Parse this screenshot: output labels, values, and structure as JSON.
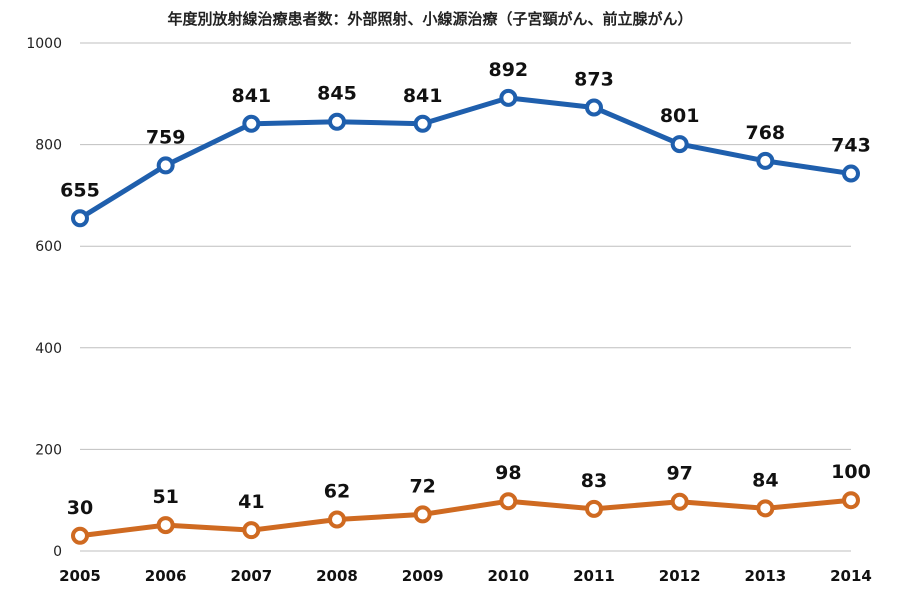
{
  "chart_data": {
    "type": "line",
    "title": "年度別放射線治療患者数：外部照射、小線源治療（子宮頸がん、前立腺がん）",
    "xlabel": "",
    "ylabel": "",
    "x": [
      "2005",
      "2006",
      "2007",
      "2008",
      "2009",
      "2010",
      "2011",
      "2012",
      "2013",
      "2014"
    ],
    "ylim": [
      0,
      1000
    ],
    "yticks": [
      "0",
      "200",
      "400",
      "600",
      "800",
      "1000"
    ],
    "grid": true,
    "legend": "none",
    "series": [
      {
        "color": "#1f5fad",
        "values": [
          655,
          759,
          841,
          845,
          841,
          892,
          873,
          801,
          768,
          743
        ]
      },
      {
        "color": "#cf6a21",
        "values": [
          30,
          51,
          41,
          62,
          72,
          98,
          83,
          97,
          84,
          100
        ]
      }
    ]
  }
}
